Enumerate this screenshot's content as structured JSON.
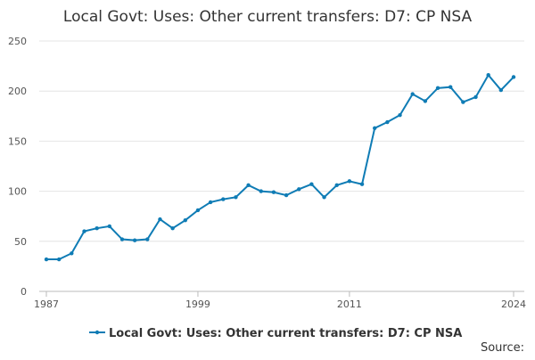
{
  "chart_data": {
    "type": "line",
    "title": "Local Govt: Uses: Other current transfers: D7: CP NSA",
    "x": [
      1987,
      1988,
      1989,
      1990,
      1991,
      1992,
      1993,
      1994,
      1995,
      1996,
      1997,
      1998,
      1999,
      2000,
      2001,
      2002,
      2003,
      2004,
      2005,
      2006,
      2007,
      2008,
      2009,
      2010,
      2011,
      2012,
      2013,
      2014,
      2015,
      2016,
      2017,
      2018,
      2019,
      2020,
      2021,
      2022,
      2023,
      2024
    ],
    "series": [
      {
        "name": "Local Govt: Uses: Other current transfers: D7: CP NSA",
        "color": "#0f7cb5",
        "values": [
          32,
          32,
          38,
          60,
          63,
          65,
          52,
          51,
          52,
          72,
          63,
          71,
          81,
          89,
          92,
          94,
          106,
          100,
          99,
          96,
          102,
          107,
          94,
          106,
          110,
          107,
          163,
          169,
          176,
          197,
          190,
          203,
          204,
          189,
          194,
          216,
          201,
          214
        ]
      }
    ],
    "xlim": [
      1987,
      2024
    ],
    "xticks": [
      1987,
      1999,
      2011,
      2024
    ],
    "ylim": [
      0,
      250
    ],
    "yticks": [
      0,
      50,
      100,
      150,
      200,
      250
    ],
    "grid": true,
    "source": "Source:"
  }
}
